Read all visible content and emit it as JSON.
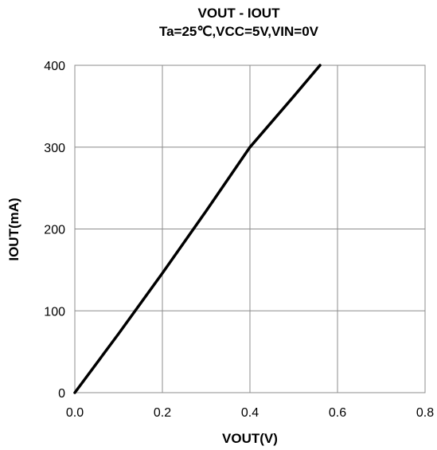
{
  "chart_data": {
    "type": "line",
    "title": "VOUT - IOUT",
    "subtitle": "Ta=25℃,VCC=5V,VIN=0V",
    "xlabel": "VOUT(V)",
    "ylabel": "IOUT(mA)",
    "xlim": [
      0,
      0.8
    ],
    "ylim": [
      0,
      400
    ],
    "x_ticks": [
      "0.0",
      "0.2",
      "0.4",
      "0.6",
      "0.8"
    ],
    "y_ticks": [
      "0",
      "100",
      "200",
      "300",
      "400"
    ],
    "grid": true,
    "series": [
      {
        "color": "#000000",
        "points": [
          {
            "x": 0.0,
            "y": 0
          },
          {
            "x": 0.1,
            "y": 72
          },
          {
            "x": 0.2,
            "y": 146
          },
          {
            "x": 0.3,
            "y": 222
          },
          {
            "x": 0.4,
            "y": 300
          },
          {
            "x": 0.5,
            "y": 362
          },
          {
            "x": 0.56,
            "y": 400
          }
        ]
      }
    ]
  }
}
